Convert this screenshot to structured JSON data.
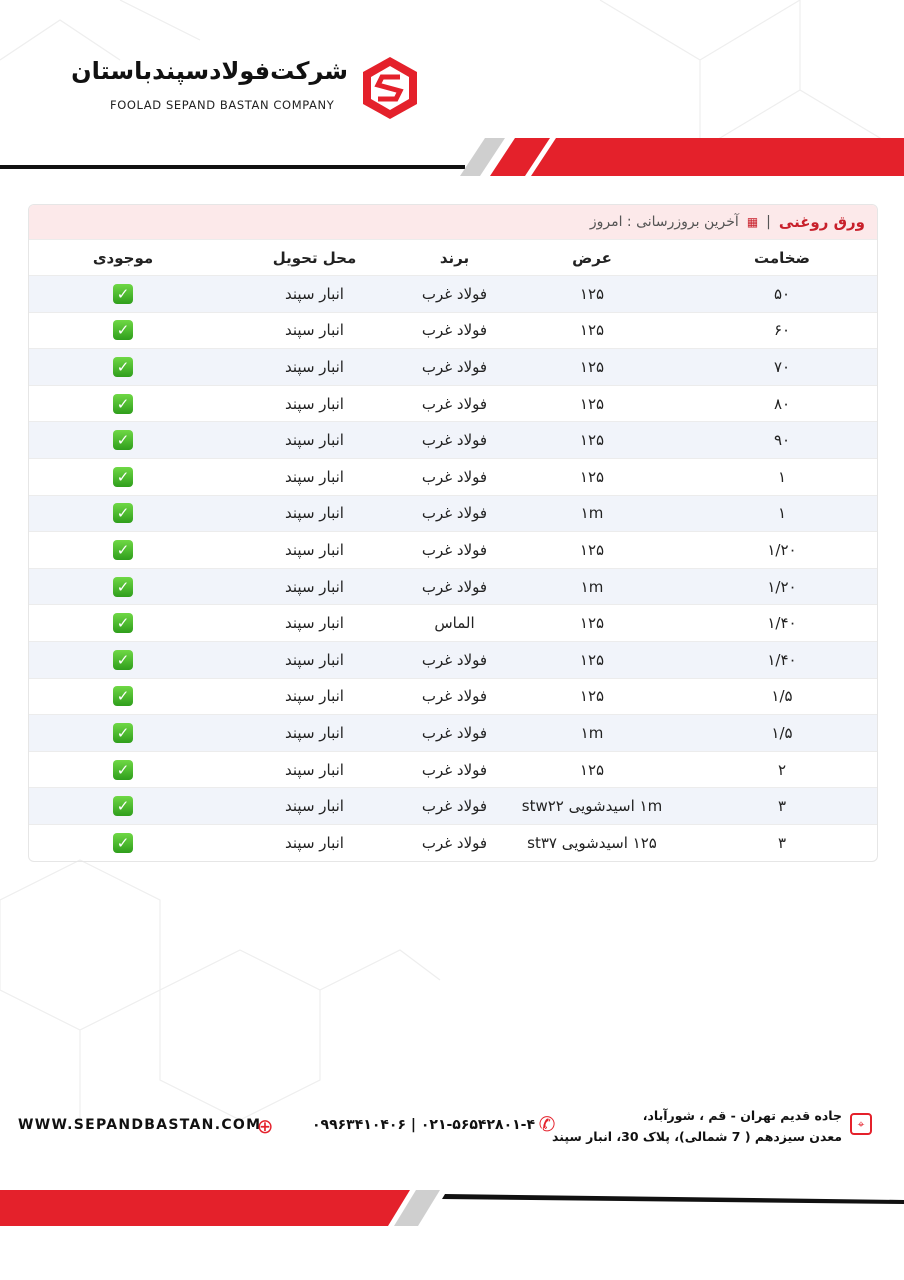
{
  "brand": {
    "name_fa": "شرکت‌فولادسپندباستان",
    "name_en": "FOOLAD SEPAND BASTAN COMPANY",
    "accent": "#e4212b"
  },
  "table": {
    "title": "ورق روغنی",
    "updated_label": "آخرین بروزرسانی : امروز",
    "headers": [
      "ضخامت",
      "عرض",
      "برند",
      "محل تحویل",
      "موجودی"
    ],
    "rows": [
      {
        "thickness": "۵۰",
        "width": "۱۲۵",
        "brand": "فولاد غرب",
        "location": "انبار سپند",
        "stock": "✓"
      },
      {
        "thickness": "۶۰",
        "width": "۱۲۵",
        "brand": "فولاد غرب",
        "location": "انبار سپند",
        "stock": "✓"
      },
      {
        "thickness": "۷۰",
        "width": "۱۲۵",
        "brand": "فولاد غرب",
        "location": "انبار سپند",
        "stock": "✓"
      },
      {
        "thickness": "۸۰",
        "width": "۱۲۵",
        "brand": "فولاد غرب",
        "location": "انبار سپند",
        "stock": "✓"
      },
      {
        "thickness": "۹۰",
        "width": "۱۲۵",
        "brand": "فولاد غرب",
        "location": "انبار سپند",
        "stock": "✓"
      },
      {
        "thickness": "۱",
        "width": "۱۲۵",
        "brand": "فولاد غرب",
        "location": "انبار سپند",
        "stock": "✓"
      },
      {
        "thickness": "۱",
        "width": "۱m",
        "brand": "فولاد غرب",
        "location": "انبار سپند",
        "stock": "✓"
      },
      {
        "thickness": "۱/۲۰",
        "width": "۱۲۵",
        "brand": "فولاد غرب",
        "location": "انبار سپند",
        "stock": "✓"
      },
      {
        "thickness": "۱/۲۰",
        "width": "۱m",
        "brand": "فولاد غرب",
        "location": "انبار سپند",
        "stock": "✓"
      },
      {
        "thickness": "۱/۴۰",
        "width": "۱۲۵",
        "brand": "الماس",
        "location": "انبار سپند",
        "stock": "✓"
      },
      {
        "thickness": "۱/۴۰",
        "width": "۱۲۵",
        "brand": "فولاد غرب",
        "location": "انبار سپند",
        "stock": "✓"
      },
      {
        "thickness": "۱/۵",
        "width": "۱۲۵",
        "brand": "فولاد غرب",
        "location": "انبار سپند",
        "stock": "✓"
      },
      {
        "thickness": "۱/۵",
        "width": "۱m",
        "brand": "فولاد غرب",
        "location": "انبار سپند",
        "stock": "✓"
      },
      {
        "thickness": "۲",
        "width": "۱۲۵",
        "brand": "فولاد غرب",
        "location": "انبار سپند",
        "stock": "✓"
      },
      {
        "thickness": "۳",
        "width": "۱m اسیدشویی stw۲۲",
        "brand": "فولاد غرب",
        "location": "انبار سپند",
        "stock": "✓"
      },
      {
        "thickness": "۳",
        "width": "۱۲۵ اسیدشویی st۳۷",
        "brand": "فولاد غرب",
        "location": "انبار سپند",
        "stock": "✓"
      }
    ]
  },
  "footer": {
    "website": "WWW.SEPANDBASTAN.COM",
    "phone": "۰۹۹۶۳۴۱۰۴۰۶ | ۰۲۱-۵۶۵۴۲۸۰۱-۴",
    "address_line1": "جاده قدیم تهران - قم ، شورآباد،",
    "address_line2": "معدن سیزدهم ( 7 شمالی)، پلاک 30، انبار سپند"
  }
}
